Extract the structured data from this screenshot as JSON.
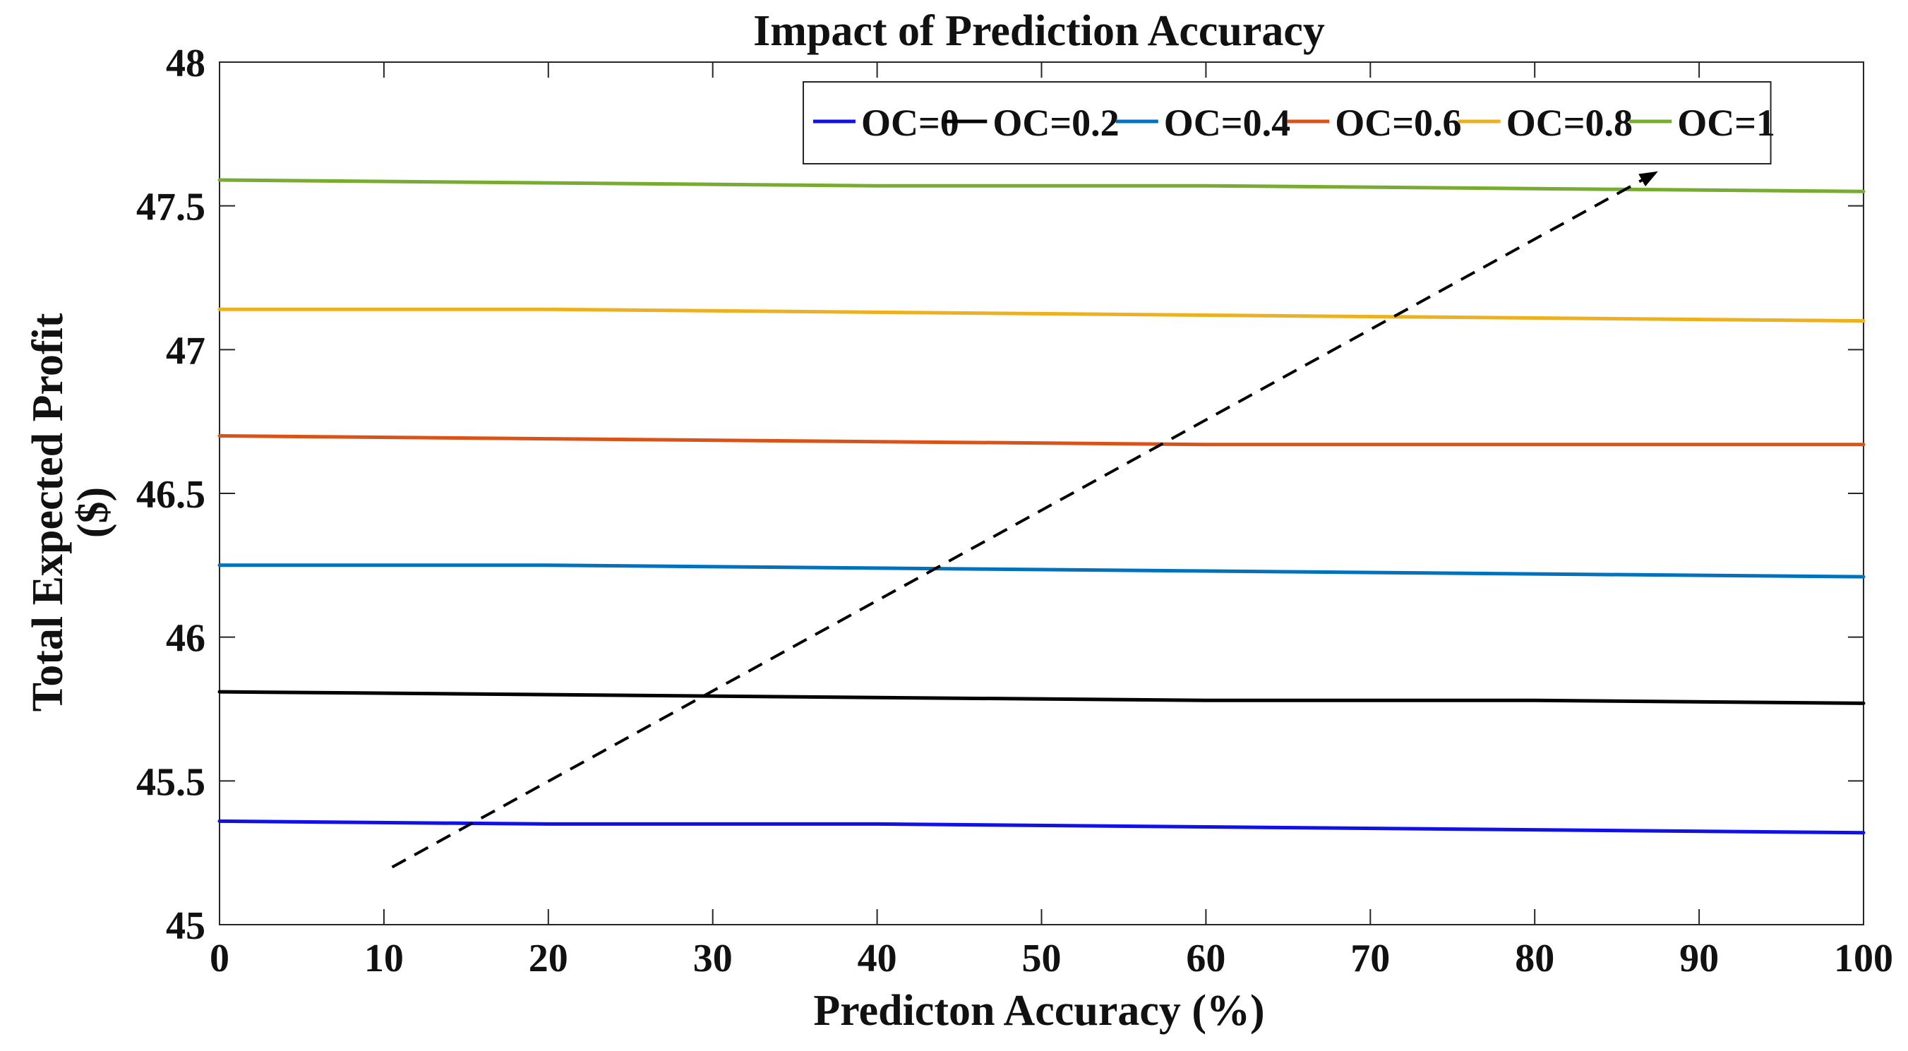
{
  "chart_data": {
    "type": "line",
    "title": "Impact of Prediction Accuracy",
    "xlabel": "Predicton Accuracy (%)",
    "ylabel_line1": "Total Expected Profit",
    "ylabel_line2": "($)",
    "xlim": [
      0,
      100
    ],
    "ylim": [
      45,
      48
    ],
    "xticks": [
      0,
      10,
      20,
      30,
      40,
      50,
      60,
      70,
      80,
      90,
      100
    ],
    "yticks": [
      45,
      45.5,
      46,
      46.5,
      47,
      47.5,
      48
    ],
    "grid": false,
    "legend_position": "top-right",
    "x": [
      0,
      20,
      40,
      60,
      80,
      100
    ],
    "series": [
      {
        "name": "OC=0",
        "color": "#1010e8",
        "values": [
          45.36,
          45.35,
          45.35,
          45.34,
          45.33,
          45.32
        ]
      },
      {
        "name": "OC=0.2",
        "color": "#000000",
        "values": [
          45.81,
          45.8,
          45.79,
          45.78,
          45.78,
          45.77
        ]
      },
      {
        "name": "OC=0.4",
        "color": "#0072bd",
        "values": [
          46.25,
          46.25,
          46.24,
          46.23,
          46.22,
          46.21
        ]
      },
      {
        "name": "OC=0.6",
        "color": "#d95319",
        "values": [
          46.7,
          46.69,
          46.68,
          46.67,
          46.67,
          46.67
        ]
      },
      {
        "name": "OC=0.8",
        "color": "#edb120",
        "values": [
          47.14,
          47.14,
          47.13,
          47.12,
          47.11,
          47.1
        ]
      },
      {
        "name": "OC=1",
        "color": "#77ac30",
        "values": [
          47.59,
          47.58,
          47.57,
          47.57,
          47.56,
          47.55
        ]
      }
    ],
    "annotation_arrow": {
      "style": "dashed",
      "color": "#000000",
      "from": [
        10.5,
        45.2
      ],
      "to": [
        87.5,
        47.62
      ]
    }
  }
}
